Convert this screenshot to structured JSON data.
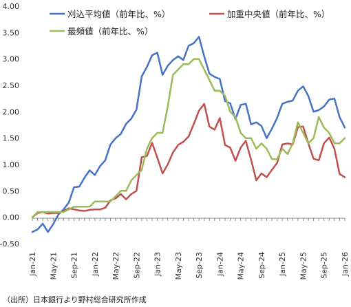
{
  "chart_data": {
    "type": "line",
    "ylim": [
      -0.5,
      4.0
    ],
    "y_ticks": [
      "4.00",
      "3.50",
      "3.00",
      "2.50",
      "2.00",
      "1.50",
      "1.00",
      "0.50",
      "0.00",
      "-0.50"
    ],
    "x_ticks": [
      "Jan-21",
      "May-21",
      "Sep-21",
      "Jan-22",
      "May-22",
      "Sep-22",
      "Jan-23",
      "May-23",
      "Sep-23",
      "Jan-24",
      "May-24",
      "Sep-24",
      "Jan-25",
      "May-25",
      "Sep-25",
      "Jan-26"
    ],
    "legend_placement": "top",
    "grid": false,
    "series": [
      {
        "name": "刈込平均値（前年比、%）",
        "color": "#4472C4",
        "values": [
          -0.28,
          -0.23,
          -0.12,
          -0.28,
          -0.13,
          0.05,
          0.15,
          0.28,
          0.57,
          0.58,
          0.75,
          0.89,
          0.8,
          0.97,
          1.08,
          1.38,
          1.5,
          1.58,
          1.77,
          1.87,
          2.04,
          2.67,
          2.85,
          3.07,
          3.12,
          2.7,
          2.87,
          2.98,
          3.05,
          2.98,
          3.25,
          3.3,
          3.42,
          3.05,
          2.72,
          2.66,
          2.62,
          2.2,
          2.16,
          1.86,
          2.13,
          2.15,
          1.76,
          1.8,
          1.73,
          1.5,
          1.68,
          1.88,
          2.15,
          2.19,
          2.21,
          2.4,
          2.48,
          2.3,
          2.0,
          2.03,
          2.1,
          2.23,
          2.25,
          1.9,
          1.7
        ]
      },
      {
        "name": "加重中央値（前年比、%）",
        "color": "#C0504D",
        "values": [
          0.0,
          0.08,
          0.1,
          0.07,
          0.08,
          0.08,
          0.12,
          0.17,
          0.15,
          0.13,
          0.12,
          0.14,
          0.15,
          0.15,
          0.18,
          0.32,
          0.36,
          0.44,
          0.34,
          0.44,
          0.5,
          1.14,
          1.16,
          1.41,
          1.13,
          0.83,
          1.0,
          1.23,
          1.37,
          1.43,
          1.53,
          1.77,
          2.02,
          2.15,
          1.72,
          1.66,
          1.88,
          1.37,
          1.32,
          1.07,
          1.32,
          1.45,
          1.09,
          0.7,
          0.83,
          0.76,
          0.9,
          1.03,
          1.38,
          1.4,
          1.38,
          1.71,
          1.72,
          1.4,
          1.11,
          1.08,
          1.4,
          1.51,
          1.3,
          0.82,
          0.76
        ]
      },
      {
        "name": "最頻値（前年比、%）",
        "color": "#9BBB59",
        "values": [
          0.0,
          0.1,
          0.1,
          0.1,
          0.1,
          0.1,
          0.1,
          0.15,
          0.2,
          0.2,
          0.2,
          0.2,
          0.3,
          0.3,
          0.3,
          0.3,
          0.4,
          0.5,
          0.5,
          0.7,
          0.8,
          0.9,
          1.3,
          1.5,
          1.6,
          1.6,
          2.1,
          2.7,
          2.8,
          2.9,
          2.9,
          3.0,
          3.0,
          2.8,
          2.6,
          2.4,
          2.4,
          2.3,
          2.0,
          1.9,
          1.6,
          1.5,
          1.5,
          1.3,
          1.4,
          1.3,
          1.1,
          1.1,
          1.3,
          1.2,
          1.4,
          1.8,
          1.6,
          1.4,
          1.5,
          1.9,
          1.7,
          1.6,
          1.4,
          1.4,
          1.5
        ]
      }
    ]
  },
  "source_note": "（出所）日本銀行より野村総合研究所作成"
}
